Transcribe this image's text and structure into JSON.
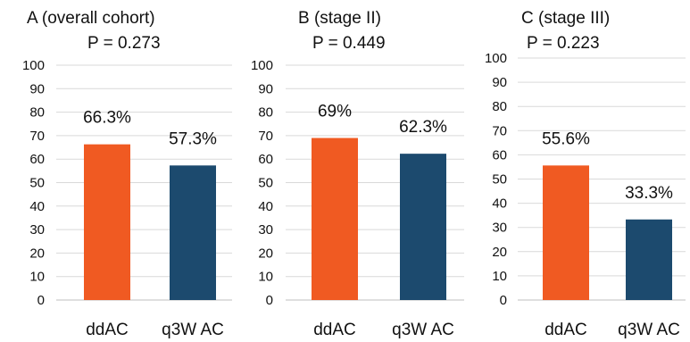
{
  "chart_data": [
    {
      "type": "bar",
      "title": "A (overall cohort)",
      "subtitle": "P = 0.273",
      "categories": [
        "ddAC",
        "q3W AC"
      ],
      "values": [
        66.3,
        57.3
      ],
      "data_labels": [
        "66.3%",
        "57.3%"
      ],
      "colors": [
        "#f05a22",
        "#1c4a6e"
      ],
      "ylim": [
        0,
        100
      ],
      "yticks": [
        0,
        10,
        20,
        30,
        40,
        50,
        60,
        70,
        80,
        90,
        100
      ],
      "xlabel": "",
      "ylabel": "",
      "grid": true
    },
    {
      "type": "bar",
      "title": "B (stage II)",
      "subtitle": "P = 0.449",
      "categories": [
        "ddAC",
        "q3W AC"
      ],
      "values": [
        69,
        62.3
      ],
      "data_labels": [
        "69%",
        "62.3%"
      ],
      "colors": [
        "#f05a22",
        "#1c4a6e"
      ],
      "ylim": [
        0,
        100
      ],
      "yticks": [
        0,
        10,
        20,
        30,
        40,
        50,
        60,
        70,
        80,
        90,
        100
      ],
      "xlabel": "",
      "ylabel": "",
      "grid": true
    },
    {
      "type": "bar",
      "title": "C (stage III)",
      "subtitle": "P = 0.223",
      "categories": [
        "ddAC",
        "q3W AC"
      ],
      "values": [
        55.6,
        33.3
      ],
      "data_labels": [
        "55.6%",
        "33.3%"
      ],
      "colors": [
        "#f05a22",
        "#1c4a6e"
      ],
      "ylim": [
        0,
        100
      ],
      "yticks": [
        0,
        10,
        20,
        30,
        40,
        50,
        60,
        70,
        80,
        90,
        100
      ],
      "xlabel": "",
      "ylabel": "",
      "grid": true
    }
  ]
}
